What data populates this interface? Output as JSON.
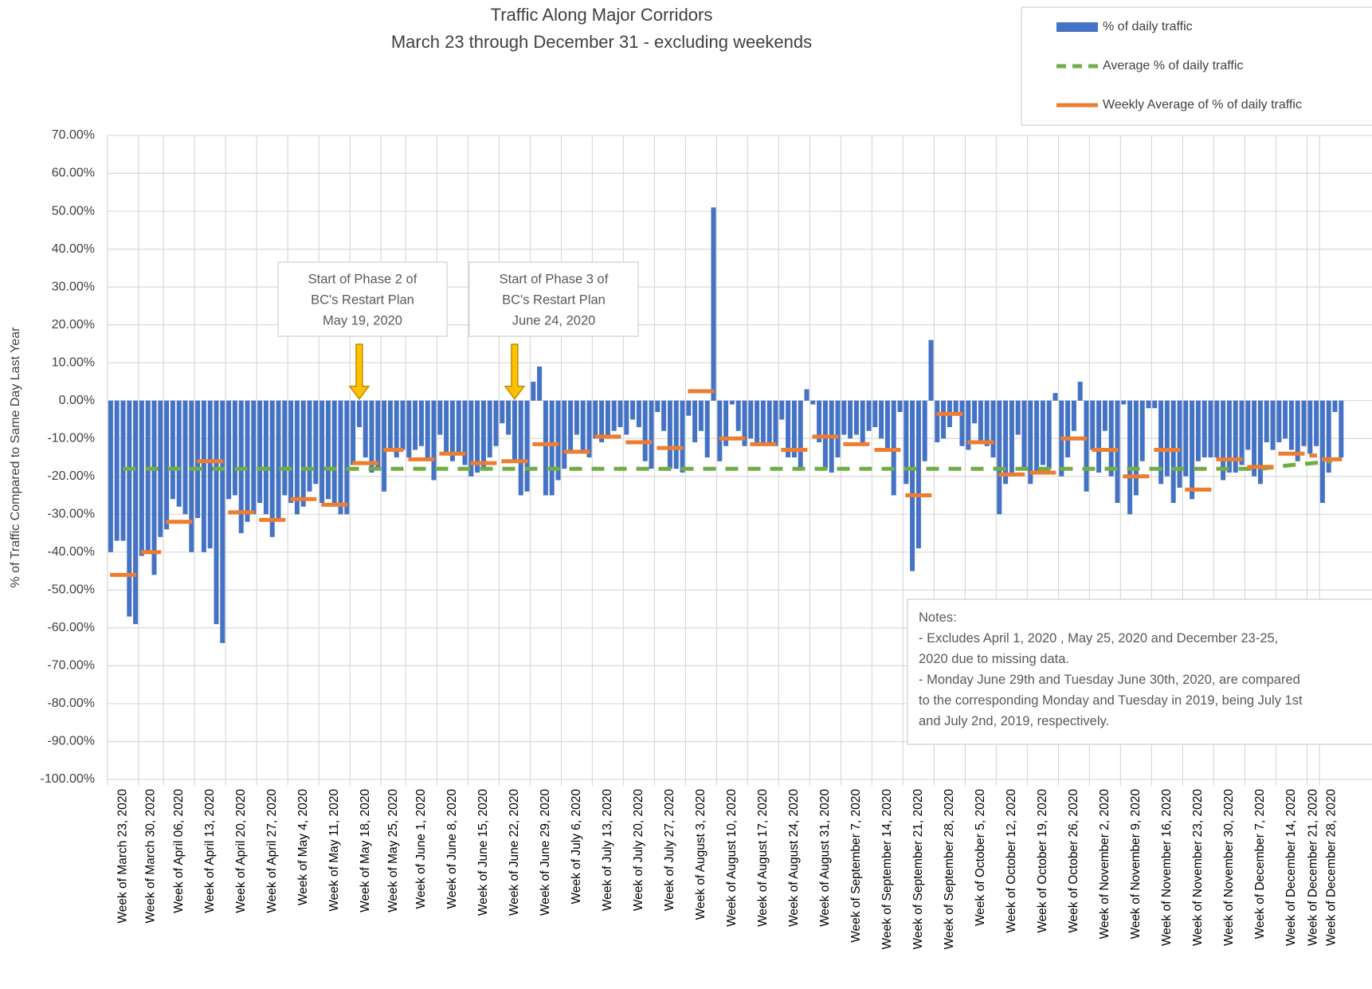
{
  "chart_data": {
    "type": "bar",
    "title": [
      "Traffic Along Major Corridors",
      "March 23 through December 31 - excluding weekends"
    ],
    "y_label": "% of Traffic Compared to Same Day Last Year",
    "categories": [
      "Week of March 23, 2020",
      "Week of March 30, 2020",
      "Week of April 06, 2020",
      "Week of April 13, 2020",
      "Week of April 20, 2020",
      "Week of April 27, 2020",
      "Week of May 4, 2020",
      "Week of May 11, 2020",
      "Week of May 18, 2020",
      "Week of May 25, 2020",
      "Week of June 1, 2020",
      "Week of June 8, 2020",
      "Week of June 15, 2020",
      "Week of June 22, 2020",
      "Week of June 29, 2020",
      "Week of July 6, 2020",
      "Week of July 13, 2020",
      "Week of July 20, 2020",
      "Week of July 27, 2020",
      "Week of August 3, 2020",
      "Week of August 10, 2020",
      "Week of August 17, 2020",
      "Week of August 24, 2020",
      "Week of August 31, 2020",
      "Week of September 7, 2020",
      "Week of September 14, 2020",
      "Week of September 21, 2020",
      "Week of September 28, 2020",
      "Week of October 5, 2020",
      "Week of October 12, 2020",
      "Week of October 19, 2020",
      "Week of October 26, 2020",
      "Week of November 2, 2020",
      "Week of November 9, 2020",
      "Week of November 16, 2020",
      "Week of November 23, 2020",
      "Week of November 30, 2020",
      "Week of December 7, 2020",
      "Week of December 14, 2020",
      "Week of December 21, 2020",
      "Week of December 28, 2020"
    ],
    "series": [
      {
        "name": "% of daily traffic",
        "color": "#4472c4",
        "mark": "bar",
        "values": [
          [
            -40,
            -37,
            -37,
            -57,
            -59
          ],
          [
            -41,
            -40,
            -46,
            -36
          ],
          [
            -34,
            -26,
            -28,
            -30,
            -40
          ],
          [
            -31,
            -40,
            -39,
            -59,
            -64
          ],
          [
            -26,
            -25,
            -35,
            -32,
            -30
          ],
          [
            -27,
            -30,
            -36,
            -31,
            -25
          ],
          [
            -27,
            -30,
            -28,
            -24,
            -22
          ],
          [
            -27,
            -26,
            -27,
            -30,
            -30
          ],
          [
            -17,
            -7,
            -15,
            -19,
            -18
          ],
          [
            -24,
            -13,
            -15,
            -13
          ],
          [
            -15,
            -13,
            -12,
            -16,
            -21
          ],
          [
            -9,
            -14,
            -16,
            -14,
            -17
          ],
          [
            -20,
            -19,
            -18,
            -15,
            -12
          ],
          [
            -6,
            -9,
            -16,
            -25,
            -24
          ],
          [
            5,
            9,
            -25,
            -25,
            -21
          ],
          [
            -18,
            -14,
            -9,
            -13,
            -15
          ],
          [
            -10,
            -11,
            -9,
            -8,
            -7
          ],
          [
            -9,
            -5,
            -7,
            -16,
            -18
          ],
          [
            -3,
            -8,
            -18,
            -18,
            -19
          ],
          [
            -4,
            -11,
            -8,
            -15,
            51
          ],
          [
            -16,
            -12,
            -1,
            -8,
            -12
          ],
          [
            -10,
            -12,
            -11,
            -11,
            -12
          ],
          [
            -5,
            -15,
            -15,
            -18,
            3
          ],
          [
            -1,
            -11,
            -18,
            -19,
            -15
          ],
          [
            -9,
            -10,
            -9,
            -11,
            -8
          ],
          [
            -7,
            -10,
            -13,
            -25,
            -3
          ],
          [
            -22,
            -45,
            -39,
            -16,
            16
          ],
          [
            -11,
            -10,
            -7,
            -3,
            -12
          ],
          [
            -13,
            -6,
            -11,
            -12,
            -15
          ],
          [
            -30,
            -22,
            -20,
            -9,
            -18
          ],
          [
            -22,
            -19,
            -17,
            -18,
            2
          ],
          [
            -20,
            -15,
            -8,
            5,
            -24
          ],
          [
            -13,
            -19,
            -8,
            -20,
            -27
          ],
          [
            -1,
            -30,
            -25,
            -16,
            -2
          ],
          [
            -2,
            -22,
            -20,
            -27,
            -23
          ],
          [
            -20,
            -26,
            -16,
            -15,
            -15
          ],
          [
            -15,
            -21,
            -19,
            -19,
            -17
          ],
          [
            -13,
            -20,
            -22,
            -11,
            -13
          ],
          [
            -11,
            -10,
            -13,
            -16,
            -12
          ],
          [
            -14,
            -12
          ],
          [
            -27,
            -19,
            -3,
            -15
          ]
        ]
      },
      {
        "name": "Average % of daily traffic",
        "color": "#70ad47",
        "mark": "dashed-line",
        "values": [
          -18,
          -18,
          -18,
          -18,
          -18,
          -18,
          -18,
          -18,
          -18,
          -18,
          -18,
          -18,
          -18,
          -18,
          -18,
          -18,
          -18,
          -18,
          -18,
          -18,
          -18,
          -18,
          -18,
          -18,
          -18,
          -18,
          -18,
          -18,
          -18,
          -18,
          -18,
          -18,
          -18,
          -18,
          -18,
          -18,
          -18,
          -18,
          -17,
          -16.5,
          -16
        ]
      },
      {
        "name": "Weekly Average of % of daily traffic",
        "color": "#ed7d31",
        "mark": "segment",
        "values": [
          -46,
          -40,
          -32,
          -16,
          -29.5,
          -31.5,
          -26,
          -27.5,
          -16.5,
          -13,
          -15.5,
          -14,
          -16.5,
          -16,
          -11.5,
          -13.5,
          -9.5,
          -11,
          -12.5,
          2.5,
          -10,
          -11.5,
          -13,
          -9.5,
          -11.5,
          -13,
          -25,
          -3.5,
          -11,
          -19.5,
          -19,
          -10,
          -13,
          -20,
          -13,
          -23.5,
          -15.5,
          -17.5,
          -14,
          -14.5,
          -15.5
        ]
      }
    ],
    "ylim": [
      -100,
      70
    ],
    "yticks": [
      {
        "value": -100,
        "label": "-100.00%"
      },
      {
        "value": -90,
        "label": "-90.00%"
      },
      {
        "value": -80,
        "label": "-80.00%"
      },
      {
        "value": -70,
        "label": "-70.00%"
      },
      {
        "value": -60,
        "label": "-60.00%"
      },
      {
        "value": -50,
        "label": "-50.00%"
      },
      {
        "value": -40,
        "label": "-40.00%"
      },
      {
        "value": -30,
        "label": "-30.00%"
      },
      {
        "value": -20,
        "label": "-20.00%"
      },
      {
        "value": -10,
        "label": "-10.00%"
      },
      {
        "value": 0,
        "label": "0.00%"
      },
      {
        "value": 10,
        "label": "10.00%"
      },
      {
        "value": 20,
        "label": "20.00%"
      },
      {
        "value": 30,
        "label": "30.00%"
      },
      {
        "value": 40,
        "label": "40.00%"
      },
      {
        "value": 50,
        "label": "50.00%"
      },
      {
        "value": 60,
        "label": "60.00%"
      },
      {
        "value": 70,
        "label": "70.00%"
      }
    ],
    "grid": true,
    "legend": "top-right",
    "annotations": [
      {
        "lines": [
          "Start of Phase 2 of",
          "BC's Restart Plan",
          "May 19, 2020"
        ]
      },
      {
        "lines": [
          "Start of Phase 3 of",
          "BC's Restart Plan",
          "June 24, 2020"
        ]
      }
    ],
    "notes": [
      "Notes:",
      "- Excludes April 1, 2020 , May 25, 2020 and December 23-25,",
      "2020 due to missing data.",
      "- Monday June 29th and Tuesday June 30th, 2020, are compared",
      "to the corresponding Monday and Tuesday in 2019, being July 1st",
      "and July 2nd, 2019, respectively."
    ]
  }
}
